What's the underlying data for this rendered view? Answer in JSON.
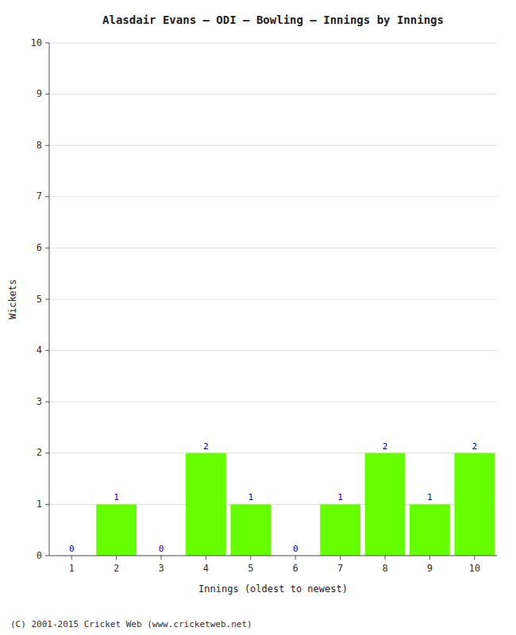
{
  "chart_data": {
    "type": "bar",
    "title": "Alasdair Evans – ODI – Bowling – Innings by Innings",
    "x_label": "Innings (oldest to newest)",
    "y_label": "Wickets",
    "categories": [
      "1",
      "2",
      "3",
      "4",
      "5",
      "6",
      "7",
      "8",
      "9",
      "10"
    ],
    "values": [
      0,
      1,
      0,
      2,
      1,
      0,
      1,
      2,
      1,
      2
    ],
    "color": "#66ff00",
    "ylim": [
      0,
      10
    ],
    "yticks": [
      0,
      1,
      2,
      3,
      4,
      5,
      6,
      7,
      8,
      9,
      10
    ],
    "grid": true,
    "data_labels": true,
    "annotations": [
      "(C) 2001-2015 Cricket Web (www.cricketweb.net)"
    ]
  }
}
